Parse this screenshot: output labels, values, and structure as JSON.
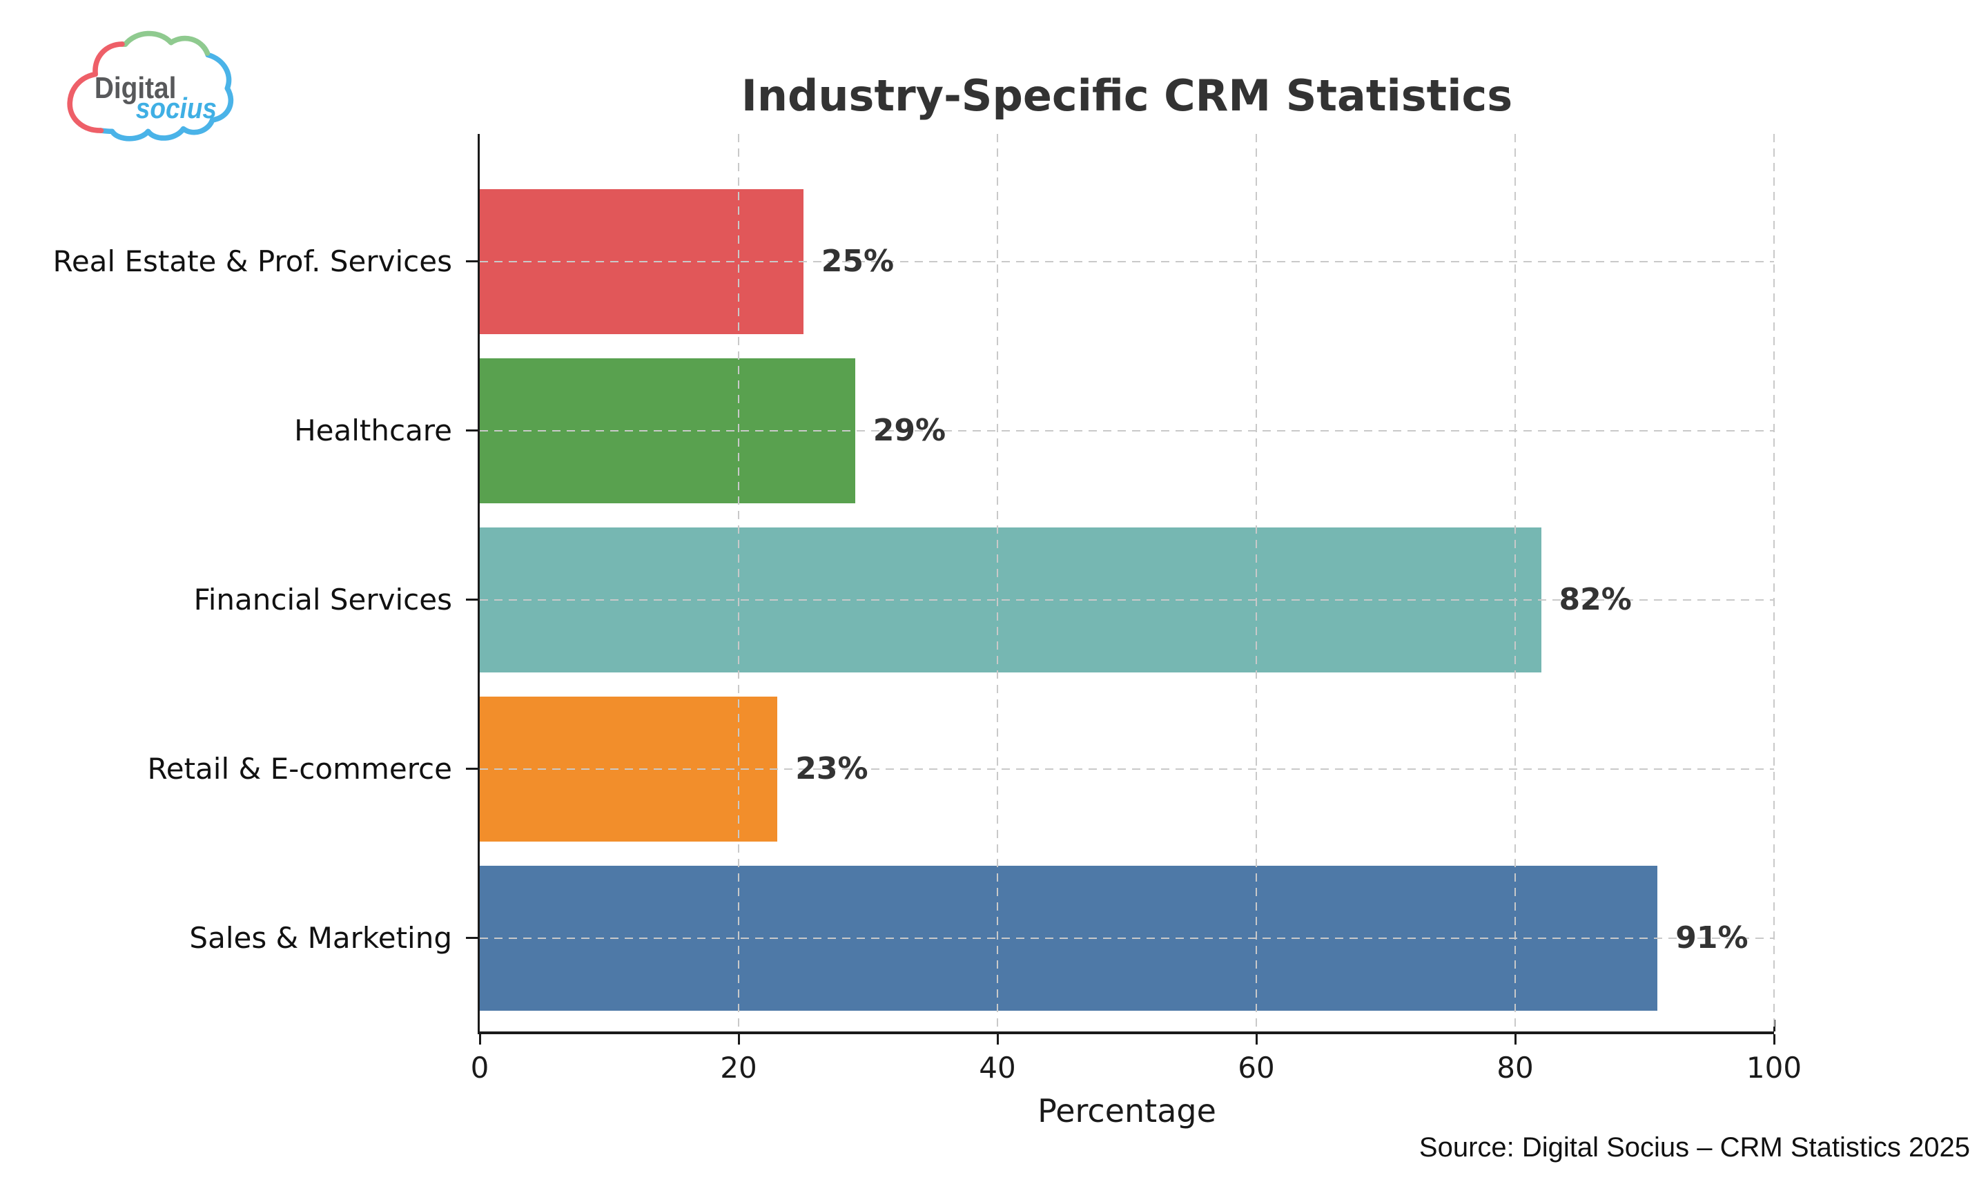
{
  "logo": {
    "word_top": "Digital",
    "word_bottom": "socius",
    "colors": {
      "cloud_red": "#ee5f68",
      "cloud_green": "#8fca8f",
      "cloud_blue": "#4ab3e8",
      "digital_gray": "#58595b",
      "socius_blue": "#3fafe4"
    }
  },
  "chart_data": {
    "type": "bar",
    "orientation": "horizontal",
    "title": "Industry-Specific CRM Statistics",
    "xlabel": "Percentage",
    "xlim": [
      0,
      100
    ],
    "xticks": [
      0,
      20,
      40,
      60,
      80,
      100
    ],
    "grid": "dashed gridlines on both axes, drawn over bars",
    "grid_color": "#c9c9c9",
    "categories": [
      "Real Estate & Prof. Services",
      "Healthcare",
      "Financial Services",
      "Retail & E-commerce",
      "Sales & Marketing"
    ],
    "values": [
      25,
      29,
      82,
      23,
      91
    ],
    "value_labels": [
      "25%",
      "29%",
      "82%",
      "23%",
      "91%"
    ],
    "bar_colors": [
      "#E15759",
      "#59A14F",
      "#76B7B2",
      "#F28E2B",
      "#4E79A7"
    ]
  },
  "source_note": "Source: Digital Socius – CRM Statistics 2025"
}
